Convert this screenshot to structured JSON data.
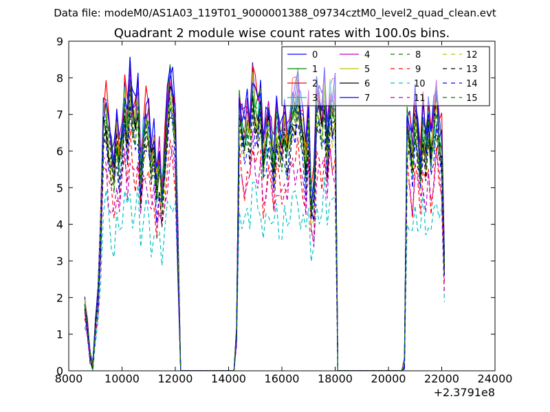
{
  "figure": {
    "suptitle": "Data file: modeM0/AS1A03_119T01_9000001388_09734cztM0_level2_quad_clean.evt",
    "title": "Quadrant 2 module wise count rates with 100.0s bins.",
    "x_offset_label": "+2.3791e8"
  },
  "chart_data": {
    "type": "line",
    "title": "Quadrant 2 module wise count rates with 100.0s bins.",
    "xlabel": "",
    "ylabel": "",
    "xlim": [
      8000,
      24000
    ],
    "ylim": [
      0,
      9
    ],
    "x_offset": 237910000,
    "xticks": [
      "8000",
      "10000",
      "12000",
      "14000",
      "16000",
      "18000",
      "20000",
      "22000",
      "24000"
    ],
    "yticks": [
      "0",
      "1",
      "2",
      "3",
      "4",
      "5",
      "6",
      "7",
      "8",
      "9"
    ],
    "grid": false,
    "legend_position": "top-right",
    "segments": [
      {
        "name": "rise",
        "x": [
          8600,
          8700,
          8800,
          8900,
          9000,
          9100,
          9200
        ],
        "base": [
          1.8,
          1.2,
          0.4,
          0.1,
          1.2,
          2.0,
          3.8
        ]
      },
      {
        "name": "orbit1",
        "x": [
          9300,
          9400,
          9500,
          9600,
          9700,
          9800,
          9900,
          10000,
          10100,
          10200,
          10300,
          10400,
          10500,
          10600,
          10700,
          10800,
          10900,
          11000,
          11100,
          11200,
          11300,
          11400,
          11500,
          11600,
          11700,
          11800,
          11900,
          12000,
          12100,
          12200
        ],
        "base": [
          6.7,
          6.9,
          6.1,
          5.6,
          5.3,
          6.3,
          5.6,
          6.2,
          7.2,
          6.3,
          7.6,
          6.7,
          6.6,
          7.2,
          5.2,
          6.2,
          6.6,
          6.4,
          5.5,
          5.9,
          4.9,
          5.5,
          4.6,
          5.6,
          6.7,
          7.4,
          7.2,
          6.5,
          3.2,
          0
        ]
      },
      {
        "name": "gap1",
        "x": [
          12300,
          14200
        ],
        "base": [
          0,
          0
        ]
      },
      {
        "name": "orbit2",
        "x": [
          14300,
          14400,
          14500,
          14600,
          14700,
          14800,
          14900,
          15000,
          15100,
          15200,
          15300,
          15400,
          15500,
          15600,
          15700,
          15800,
          15900,
          16000,
          16100,
          16200,
          16300,
          16400,
          16500,
          16600,
          16700,
          16800,
          16900,
          17000,
          17100,
          17200,
          17300,
          17400,
          17500,
          17600,
          17700,
          17800,
          17900,
          18000
        ],
        "base": [
          1.0,
          6.9,
          6.4,
          6.2,
          6.7,
          6.3,
          7.6,
          7.0,
          6.7,
          7.1,
          5.6,
          6.2,
          6.6,
          6.2,
          5.5,
          6.6,
          6.1,
          5.9,
          6.5,
          5.9,
          6.4,
          7.0,
          6.9,
          7.3,
          6.6,
          6.3,
          5.5,
          6.9,
          4.5,
          4.6,
          7.0,
          6.9,
          6.6,
          7.4,
          5.9,
          7.2,
          6.8,
          7.0
        ]
      },
      {
        "name": "gap2",
        "x": [
          18100,
          20500
        ],
        "base": [
          0,
          0
        ]
      },
      {
        "name": "orbit3",
        "x": [
          20600,
          20700,
          20800,
          20900,
          21000,
          21100,
          21200,
          21300,
          21400,
          21500,
          21600,
          21700,
          21800,
          21900,
          22000,
          22100
        ],
        "base": [
          0.2,
          6.5,
          6.2,
          5.6,
          6.9,
          6.2,
          5.5,
          6.6,
          5.8,
          6.6,
          5.8,
          6.5,
          7.2,
          6.3,
          6.0,
          2.8
        ]
      }
    ],
    "series": [
      {
        "name": "0",
        "color": "#0000ff",
        "dash": "solid",
        "scale": 1.08
      },
      {
        "name": "1",
        "color": "#008000",
        "dash": "solid",
        "scale": 1.06
      },
      {
        "name": "2",
        "color": "#ff0000",
        "dash": "solid",
        "scale": 1.1
      },
      {
        "name": "3",
        "color": "#00bfbf",
        "dash": "solid",
        "scale": 1.03
      },
      {
        "name": "4",
        "color": "#bf00bf",
        "dash": "solid",
        "scale": 1.07
      },
      {
        "name": "5",
        "color": "#bfbf00",
        "dash": "solid",
        "scale": 1.02
      },
      {
        "name": "6",
        "color": "#000000",
        "dash": "solid",
        "scale": 1.0
      },
      {
        "name": "7",
        "color": "#0000ff",
        "dash": "solid",
        "scale": 1.09
      },
      {
        "name": "8",
        "color": "#008000",
        "dash": "dashed",
        "scale": 0.98
      },
      {
        "name": "9",
        "color": "#ff0000",
        "dash": "dashed",
        "scale": 0.82
      },
      {
        "name": "10",
        "color": "#00bfbf",
        "dash": "dashed",
        "scale": 0.66
      },
      {
        "name": "11",
        "color": "#bf00bf",
        "dash": "dashed",
        "scale": 0.8
      },
      {
        "name": "12",
        "color": "#bfbf00",
        "dash": "dashed",
        "scale": 0.97
      },
      {
        "name": "13",
        "color": "#000000",
        "dash": "dashed",
        "scale": 0.95
      },
      {
        "name": "14",
        "color": "#0000ff",
        "dash": "dashed",
        "scale": 0.93
      },
      {
        "name": "15",
        "color": "#008000",
        "dash": "dashed",
        "scale": 0.99
      }
    ]
  }
}
